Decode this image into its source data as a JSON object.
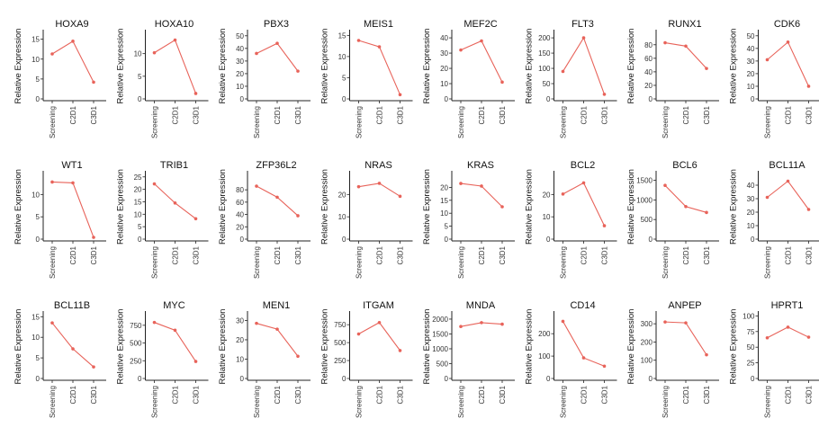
{
  "chart_data": {
    "type": "line",
    "color": "#e8635a",
    "categories": [
      "Screening",
      "C2D1",
      "C3D1"
    ],
    "ylabel": "Relative Expression",
    "panels": [
      {
        "title": "HOXA9",
        "yticks": [
          0,
          5,
          10,
          15
        ],
        "ylim": [
          0,
          16.5
        ],
        "values": [
          11.3,
          14.5,
          4.2
        ]
      },
      {
        "title": "HOXA10",
        "yticks": [
          0,
          5,
          10
        ],
        "ylim": [
          0,
          14.5
        ],
        "values": [
          10.2,
          13.0,
          1.2
        ]
      },
      {
        "title": "PBX3",
        "yticks": [
          0,
          10,
          20,
          30,
          40,
          50
        ],
        "ylim": [
          0,
          52
        ],
        "values": [
          36,
          44,
          22
        ]
      },
      {
        "title": "MEIS1",
        "yticks": [
          0,
          5,
          10,
          15
        ],
        "ylim": [
          0,
          15.5
        ],
        "values": [
          13.8,
          12.3,
          1.0
        ]
      },
      {
        "title": "MEF2C",
        "yticks": [
          0,
          10,
          20,
          30,
          40
        ],
        "ylim": [
          0,
          43
        ],
        "values": [
          32,
          38,
          11
        ]
      },
      {
        "title": "FLT3",
        "yticks": [
          0,
          50,
          100,
          150,
          200
        ],
        "ylim": [
          0,
          215
        ],
        "values": [
          90,
          200,
          15
        ]
      },
      {
        "title": "RUNX1",
        "yticks": [
          0,
          20,
          40,
          60,
          80
        ],
        "ylim": [
          0,
          97
        ],
        "values": [
          83,
          78,
          45
        ]
      },
      {
        "title": "CDK6",
        "yticks": [
          0,
          10,
          20,
          30,
          40,
          50
        ],
        "ylim": [
          0,
          52
        ],
        "values": [
          31,
          45,
          10
        ]
      },
      {
        "title": "WT1",
        "yticks": [
          0,
          5,
          10
        ],
        "ylim": [
          0,
          14.5
        ],
        "values": [
          12.8,
          12.6,
          0.4
        ]
      },
      {
        "title": "TRIB1",
        "yticks": [
          0,
          5,
          10,
          15,
          20,
          25
        ],
        "ylim": [
          0,
          26
        ],
        "values": [
          22.2,
          14.5,
          8.2
        ]
      },
      {
        "title": "ZFP36L2",
        "yticks": [
          0,
          20,
          40,
          60,
          80
        ],
        "ylim": [
          0,
          105
        ],
        "values": [
          86,
          68,
          38
        ]
      },
      {
        "title": "NRAS",
        "yticks": [
          0,
          10,
          20
        ],
        "ylim": [
          0,
          29
        ],
        "values": [
          23.5,
          25.0,
          19.2
        ]
      },
      {
        "title": "KRAS",
        "yticks": [
          0,
          5,
          10,
          15,
          20
        ],
        "ylim": [
          0,
          25
        ],
        "values": [
          21.5,
          20.5,
          12.5
        ]
      },
      {
        "title": "BCL2",
        "yticks": [
          0,
          10,
          20
        ],
        "ylim": [
          0,
          29
        ],
        "values": [
          20.2,
          25.2,
          6.0
        ]
      },
      {
        "title": "BCL6",
        "yticks": [
          0,
          500,
          1000,
          1500
        ],
        "ylim": [
          0,
          1650
        ],
        "values": [
          1370,
          830,
          680
        ]
      },
      {
        "title": "BCL11A",
        "yticks": [
          0,
          10,
          20,
          30,
          40
        ],
        "ylim": [
          0,
          48
        ],
        "values": [
          31,
          43,
          22
        ]
      },
      {
        "title": "BCL11B",
        "yticks": [
          0,
          5,
          10,
          15
        ],
        "ylim": [
          0,
          15.5
        ],
        "values": [
          13.5,
          7.2,
          2.8
        ]
      },
      {
        "title": "MYC",
        "yticks": [
          0,
          250,
          500,
          750
        ],
        "ylim": [
          0,
          900
        ],
        "values": [
          790,
          680,
          240
        ]
      },
      {
        "title": "MEN1",
        "yticks": [
          0,
          10,
          20,
          30
        ],
        "ylim": [
          0,
          33
        ],
        "values": [
          28.5,
          25.5,
          11.5
        ]
      },
      {
        "title": "ITGAM",
        "yticks": [
          0,
          250,
          500,
          750
        ],
        "ylim": [
          0,
          890
        ],
        "values": [
          620,
          780,
          390
        ]
      },
      {
        "title": "MNDA",
        "yticks": [
          0,
          500,
          1000,
          1500,
          2000
        ],
        "ylim": [
          0,
          2150
        ],
        "values": [
          1750,
          1880,
          1830
        ]
      },
      {
        "title": "CD14",
        "yticks": [
          0,
          100,
          200
        ],
        "ylim": [
          0,
          285
        ],
        "values": [
          255,
          92,
          55
        ]
      },
      {
        "title": "ANPEP",
        "yticks": [
          0,
          100,
          200,
          300
        ],
        "ylim": [
          0,
          350
        ],
        "values": [
          310,
          305,
          130
        ]
      },
      {
        "title": "HPRT1",
        "yticks": [
          0,
          25,
          50,
          75,
          100
        ],
        "ylim": [
          0,
          102
        ],
        "values": [
          65,
          82,
          66
        ]
      }
    ]
  }
}
